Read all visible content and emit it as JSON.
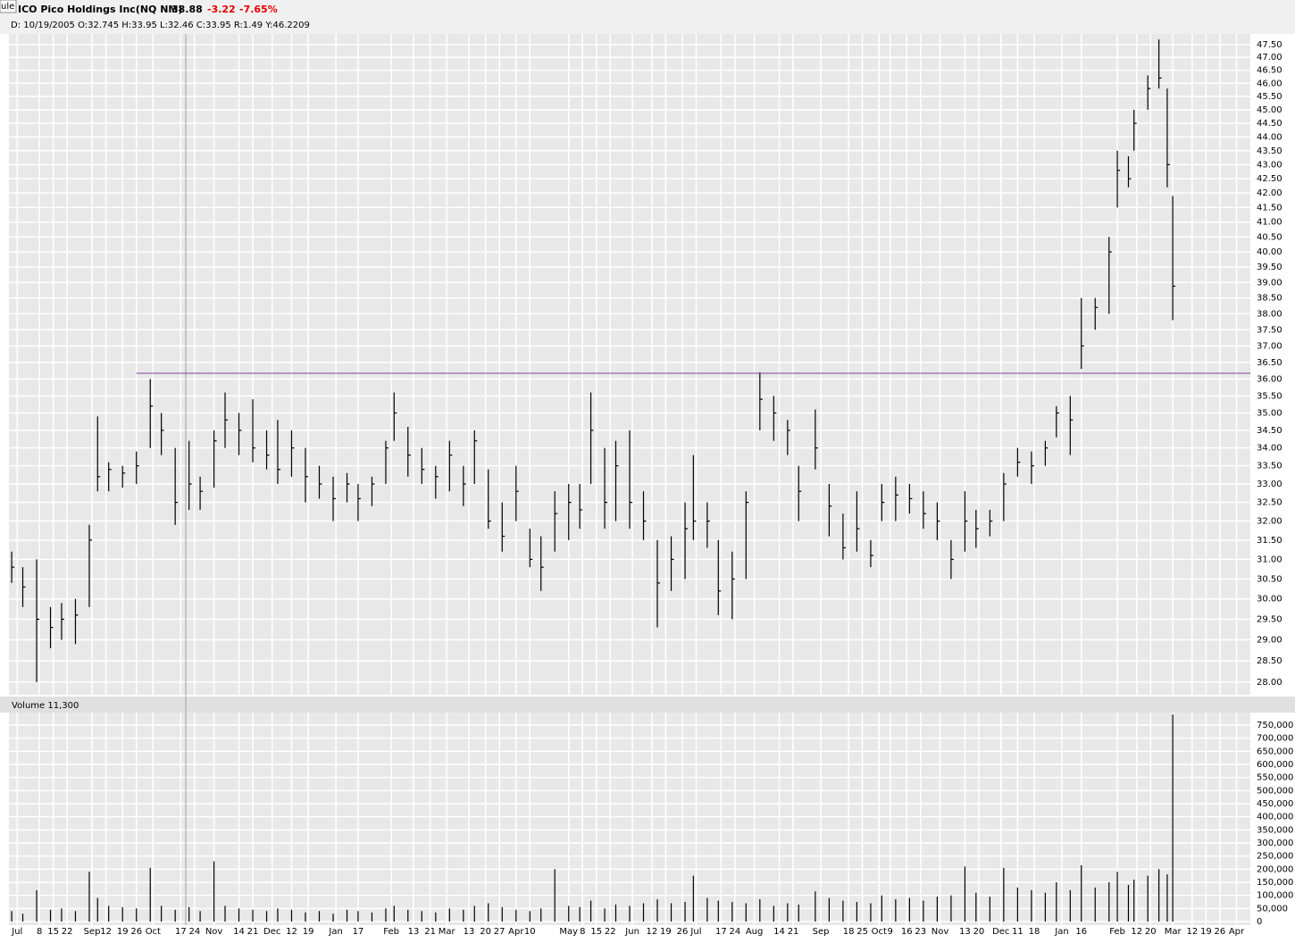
{
  "tab_label": "ule",
  "chart_data": [
    {
      "type": "ohlc",
      "header": {
        "title": "ICO Pico Holdings Inc(NQ NM)",
        "last": "38.88",
        "change": "-3.22",
        "change_pct": "-7.65%",
        "info": "D: 10/19/2005 O:32.745 H:33.95 L:32.46 C:33.95 R:1.49 Y:46.2209"
      },
      "log_scale": true,
      "grid": true,
      "color": "#000000",
      "x": [
        1,
        5,
        10,
        15,
        19,
        24,
        29,
        32,
        36,
        41,
        46,
        51,
        55,
        60,
        65,
        69,
        74,
        78,
        83,
        88,
        93,
        97,
        102,
        107,
        112,
        117,
        122,
        126,
        131,
        136,
        139,
        144,
        149,
        154,
        159,
        164,
        168,
        173,
        178,
        183,
        188,
        192,
        197,
        202,
        206,
        210,
        215,
        219,
        224,
        229,
        234,
        239,
        244,
        247,
        252,
        256,
        261,
        266,
        271,
        276,
        281,
        285,
        291,
        296,
        301,
        306,
        311,
        315,
        320,
        325,
        330,
        335,
        340,
        345,
        349,
        354,
        359,
        364,
        369,
        374,
        378,
        383,
        387,
        392,
        397,
        400,
        404,
        406,
        411,
        415,
        418,
        420
      ],
      "high": [
        31.2,
        30.8,
        31.0,
        29.8,
        29.9,
        30.0,
        31.9,
        34.9,
        33.6,
        33.5,
        33.9,
        36.0,
        35.0,
        34.0,
        34.2,
        33.2,
        34.5,
        35.6,
        35.0,
        35.4,
        34.5,
        34.8,
        34.5,
        34.0,
        33.5,
        33.2,
        33.3,
        33.0,
        33.2,
        34.2,
        35.6,
        34.6,
        34.0,
        33.5,
        34.2,
        33.5,
        34.5,
        33.4,
        32.5,
        33.5,
        31.8,
        31.6,
        32.8,
        33.0,
        33.0,
        35.6,
        34.0,
        34.2,
        34.5,
        32.8,
        31.5,
        31.6,
        32.5,
        33.8,
        32.5,
        31.5,
        31.2,
        32.8,
        36.2,
        35.5,
        34.8,
        33.5,
        35.1,
        33.0,
        32.2,
        32.8,
        31.5,
        33.0,
        33.2,
        33.0,
        32.8,
        32.5,
        31.5,
        32.8,
        32.3,
        32.3,
        33.3,
        34.0,
        33.9,
        34.2,
        35.2,
        35.5,
        38.5,
        38.5,
        40.5,
        43.5,
        43.3,
        45.0,
        46.3,
        47.7,
        45.8,
        41.9
      ],
      "low": [
        30.4,
        29.8,
        28.0,
        28.8,
        29.0,
        28.9,
        29.8,
        32.8,
        32.8,
        32.9,
        33.0,
        34.0,
        33.8,
        31.9,
        32.3,
        32.3,
        32.9,
        34.0,
        33.8,
        33.6,
        33.4,
        33.0,
        33.2,
        32.5,
        32.6,
        32.0,
        32.5,
        32.0,
        32.4,
        33.0,
        34.2,
        33.2,
        33.0,
        32.6,
        32.8,
        32.4,
        33.0,
        31.8,
        31.2,
        32.0,
        30.8,
        30.2,
        31.2,
        31.5,
        31.8,
        33.0,
        31.8,
        32.0,
        31.8,
        31.5,
        29.3,
        30.2,
        30.5,
        31.5,
        31.3,
        29.6,
        29.5,
        30.5,
        34.5,
        34.2,
        33.8,
        32.0,
        33.4,
        31.6,
        31.0,
        31.2,
        30.8,
        32.0,
        32.0,
        32.2,
        31.8,
        31.5,
        30.5,
        31.2,
        31.3,
        31.6,
        32.0,
        33.2,
        33.0,
        33.5,
        34.3,
        33.8,
        36.3,
        37.5,
        38.0,
        41.5,
        42.2,
        43.5,
        45.0,
        45.8,
        42.2,
        37.8
      ],
      "close": [
        30.8,
        30.3,
        29.5,
        29.3,
        29.5,
        29.6,
        31.5,
        33.2,
        33.4,
        33.3,
        33.5,
        35.2,
        34.5,
        32.5,
        33.0,
        32.8,
        34.2,
        34.8,
        34.5,
        34.0,
        33.8,
        33.4,
        34.0,
        33.2,
        33.0,
        32.6,
        33.0,
        32.6,
        33.0,
        34.0,
        35.0,
        33.8,
        33.4,
        33.2,
        33.8,
        33.0,
        34.2,
        32.0,
        31.6,
        32.8,
        31.0,
        30.8,
        32.2,
        32.5,
        32.3,
        34.5,
        32.5,
        33.5,
        32.5,
        32.0,
        30.4,
        31.0,
        31.8,
        32.0,
        32.0,
        30.2,
        30.5,
        32.5,
        35.4,
        35.0,
        34.5,
        32.8,
        34.0,
        32.4,
        31.3,
        31.8,
        31.1,
        32.5,
        32.7,
        32.6,
        32.2,
        32.0,
        31.0,
        32.0,
        31.8,
        32.0,
        33.0,
        33.6,
        33.5,
        34.0,
        35.0,
        34.8,
        37.0,
        38.2,
        40.0,
        42.8,
        42.5,
        44.5,
        45.8,
        46.2,
        43.0,
        38.88
      ],
      "xlim": [
        0,
        448
      ],
      "ylim": [
        27.71,
        47.85
      ],
      "yticks": [
        {
          "value": 28,
          "label": "28.00"
        },
        {
          "value": 28.5,
          "label": "28.50"
        },
        {
          "value": 29,
          "label": "29.00"
        },
        {
          "value": 29.5,
          "label": "29.50"
        },
        {
          "value": 30,
          "label": "30.00"
        },
        {
          "value": 30.5,
          "label": "30.50"
        },
        {
          "value": 31,
          "label": "31.00"
        },
        {
          "value": 31.5,
          "label": "31.50"
        },
        {
          "value": 32,
          "label": "32.00"
        },
        {
          "value": 32.5,
          "label": "32.50"
        },
        {
          "value": 33,
          "label": "33.00"
        },
        {
          "value": 33.5,
          "label": "33.50"
        },
        {
          "value": 34,
          "label": "34.00"
        },
        {
          "value": 34.5,
          "label": "34.50"
        },
        {
          "value": 35,
          "label": "35.00"
        },
        {
          "value": 35.5,
          "label": "35.50"
        },
        {
          "value": 36,
          "label": "36.00"
        },
        {
          "value": 36.5,
          "label": "36.50"
        },
        {
          "value": 37,
          "label": "37.00"
        },
        {
          "value": 37.5,
          "label": "37.50"
        },
        {
          "value": 38,
          "label": "38.00"
        },
        {
          "value": 38.5,
          "label": "38.50"
        },
        {
          "value": 39,
          "label": "39.00"
        },
        {
          "value": 39.5,
          "label": "39.50"
        },
        {
          "value": 40,
          "label": "40.00"
        },
        {
          "value": 40.5,
          "label": "40.50"
        },
        {
          "value": 41,
          "label": "41.00"
        },
        {
          "value": 41.5,
          "label": "41.50"
        },
        {
          "value": 42,
          "label": "42.00"
        },
        {
          "value": 42.5,
          "label": "42.50"
        },
        {
          "value": 43,
          "label": "43.00"
        },
        {
          "value": 43.5,
          "label": "43.50"
        },
        {
          "value": 44,
          "label": "44.00"
        },
        {
          "value": 44.5,
          "label": "44.50"
        },
        {
          "value": 45,
          "label": "45.00"
        },
        {
          "value": 45.5,
          "label": "45.50"
        },
        {
          "value": 46,
          "label": "46.00"
        },
        {
          "value": 46.5,
          "label": "46.50"
        },
        {
          "value": 47,
          "label": "47.00"
        },
        {
          "value": 47.5,
          "label": "47.50"
        }
      ],
      "hline": {
        "value": 36.17,
        "from_x": 46,
        "color": "#8040a0"
      }
    },
    {
      "type": "volume",
      "title": "Volume 11,300",
      "grid": true,
      "color": "#000000",
      "values": [
        40000,
        30000,
        120000,
        45000,
        50000,
        40000,
        190000,
        90000,
        60000,
        55000,
        50000,
        205000,
        60000,
        45000,
        55000,
        40000,
        230000,
        60000,
        50000,
        45000,
        40000,
        50000,
        45000,
        35000,
        40000,
        30000,
        45000,
        40000,
        35000,
        50000,
        60000,
        45000,
        40000,
        35000,
        50000,
        45000,
        60000,
        70000,
        55000,
        45000,
        40000,
        50000,
        200000,
        60000,
        55000,
        80000,
        50000,
        65000,
        60000,
        70000,
        85000,
        70000,
        75000,
        175000,
        90000,
        80000,
        75000,
        70000,
        85000,
        60000,
        70000,
        65000,
        115000,
        90000,
        80000,
        75000,
        70000,
        100000,
        85000,
        90000,
        80000,
        95000,
        100000,
        210000,
        110000,
        95000,
        205000,
        130000,
        120000,
        110000,
        150000,
        120000,
        215000,
        130000,
        150000,
        190000,
        140000,
        160000,
        175000,
        200000,
        180000,
        790000
      ],
      "ylim": [
        0,
        790000
      ],
      "yticks": [
        0,
        {
          "value": 50000,
          "label": "50,000"
        },
        {
          "value": 100000,
          "label": "100,000"
        },
        {
          "value": 150000,
          "label": "150,000"
        },
        {
          "value": 200000,
          "label": "200,000"
        },
        {
          "value": 250000,
          "label": "250,000"
        },
        {
          "value": 300000,
          "label": "300,000"
        },
        {
          "value": 350000,
          "label": "350,000"
        },
        {
          "value": 400000,
          "label": "400,000"
        },
        {
          "value": 450000,
          "label": "450,000"
        },
        {
          "value": 500000,
          "label": "500,000"
        },
        {
          "value": 550000,
          "label": "550,000"
        },
        {
          "value": 600000,
          "label": "600,000"
        },
        {
          "value": 650000,
          "label": "650,000"
        },
        {
          "value": 700000,
          "label": "700,000"
        },
        {
          "value": 750000,
          "label": "750,000"
        }
      ],
      "xticks": [
        {
          "value": 3,
          "label": "Jul"
        },
        {
          "value": 11,
          "label": "8"
        },
        {
          "value": 16,
          "label": "15"
        },
        {
          "value": 21,
          "label": "22"
        },
        {
          "value": 30,
          "label": "Sep"
        },
        {
          "value": 35,
          "label": "12"
        },
        {
          "value": 41,
          "label": "19"
        },
        {
          "value": 46,
          "label": "26"
        },
        {
          "value": 52,
          "label": "Oct"
        },
        {
          "value": 62,
          "label": "17"
        },
        {
          "value": 67,
          "label": "24"
        },
        {
          "value": 74,
          "label": "Nov"
        },
        {
          "value": 83,
          "label": "14"
        },
        {
          "value": 88,
          "label": "21"
        },
        {
          "value": 95,
          "label": "Dec"
        },
        {
          "value": 102,
          "label": "12"
        },
        {
          "value": 108,
          "label": "19"
        },
        {
          "value": 118,
          "label": "Jan"
        },
        {
          "value": 126,
          "label": "17"
        },
        {
          "value": 138,
          "label": "Feb"
        },
        {
          "value": 146,
          "label": "13"
        },
        {
          "value": 152,
          "label": "21"
        },
        {
          "value": 158,
          "label": "Mar"
        },
        {
          "value": 166,
          "label": "13"
        },
        {
          "value": 172,
          "label": "20"
        },
        {
          "value": 177,
          "label": "27"
        },
        {
          "value": 183,
          "label": "Apr"
        },
        {
          "value": 188,
          "label": "10"
        },
        {
          "value": 202,
          "label": "May"
        },
        {
          "value": 207,
          "label": "8"
        },
        {
          "value": 212,
          "label": "15"
        },
        {
          "value": 217,
          "label": "22"
        },
        {
          "value": 225,
          "label": "Jun"
        },
        {
          "value": 232,
          "label": "12"
        },
        {
          "value": 237,
          "label": "19"
        },
        {
          "value": 243,
          "label": "26"
        },
        {
          "value": 248,
          "label": "Jul"
        },
        {
          "value": 257,
          "label": "17"
        },
        {
          "value": 262,
          "label": "24"
        },
        {
          "value": 269,
          "label": "Aug"
        },
        {
          "value": 278,
          "label": "14"
        },
        {
          "value": 283,
          "label": "21"
        },
        {
          "value": 293,
          "label": "Sep"
        },
        {
          "value": 303,
          "label": "18"
        },
        {
          "value": 308,
          "label": "25"
        },
        {
          "value": 314,
          "label": "Oct"
        },
        {
          "value": 318,
          "label": "9"
        },
        {
          "value": 324,
          "label": "16"
        },
        {
          "value": 329,
          "label": "23"
        },
        {
          "value": 336,
          "label": "Nov"
        },
        {
          "value": 345,
          "label": "13"
        },
        {
          "value": 350,
          "label": "20"
        },
        {
          "value": 358,
          "label": "Dec"
        },
        {
          "value": 364,
          "label": "11"
        },
        {
          "value": 370,
          "label": "18"
        },
        {
          "value": 380,
          "label": "Jan"
        },
        {
          "value": 387,
          "label": "16"
        },
        {
          "value": 400,
          "label": "Feb"
        },
        {
          "value": 407,
          "label": "12"
        },
        {
          "value": 412,
          "label": "20"
        },
        {
          "value": 420,
          "label": "Mar"
        },
        {
          "value": 427,
          "label": "12"
        },
        {
          "value": 432,
          "label": "19"
        },
        {
          "value": 437,
          "label": "26"
        },
        {
          "value": 443,
          "label": "Apr"
        }
      ]
    }
  ]
}
